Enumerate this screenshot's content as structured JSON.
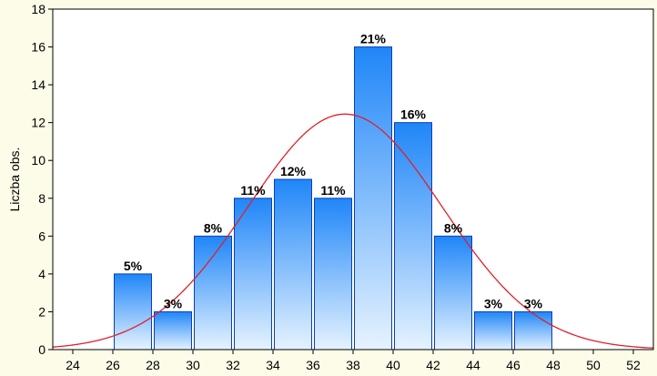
{
  "chart_data": {
    "type": "bar",
    "title": "",
    "xlabel": "",
    "ylabel": "Liczba obs.",
    "xlim": [
      23,
      53
    ],
    "ylim": [
      0,
      18
    ],
    "x_ticks": [
      24,
      26,
      28,
      30,
      32,
      34,
      36,
      38,
      40,
      42,
      44,
      46,
      48,
      50,
      52
    ],
    "y_ticks": [
      0,
      2,
      4,
      6,
      8,
      10,
      12,
      14,
      16,
      18
    ],
    "bin_width": 2,
    "grid": false,
    "series": [
      {
        "bins": [
          {
            "x_start": 26,
            "x_end": 28,
            "count": 4,
            "label": "5%"
          },
          {
            "x_start": 28,
            "x_end": 30,
            "count": 2,
            "label": "3%"
          },
          {
            "x_start": 30,
            "x_end": 32,
            "count": 6,
            "label": "8%"
          },
          {
            "x_start": 32,
            "x_end": 34,
            "count": 8,
            "label": "11%"
          },
          {
            "x_start": 34,
            "x_end": 36,
            "count": 9,
            "label": "12%"
          },
          {
            "x_start": 36,
            "x_end": 38,
            "count": 8,
            "label": "11%"
          },
          {
            "x_start": 38,
            "x_end": 40,
            "count": 16,
            "label": "21%"
          },
          {
            "x_start": 40,
            "x_end": 42,
            "count": 12,
            "label": "16%"
          },
          {
            "x_start": 42,
            "x_end": 44,
            "count": 6,
            "label": "8%"
          },
          {
            "x_start": 44,
            "x_end": 46,
            "count": 2,
            "label": "3%"
          },
          {
            "x_start": 46,
            "x_end": 48,
            "count": 2,
            "label": "3%"
          }
        ]
      }
    ],
    "fit_curve": {
      "type": "normal",
      "mean": 37.6,
      "sd": 4.85,
      "peak": 12.45,
      "color": "#e0202a"
    },
    "colors": {
      "plot_background": "#ffffff",
      "page_background": "#fcfce8",
      "bar_top": "#1f86f8",
      "bar_bottom": "#e6f3ff",
      "bar_border": "#0b3fb4"
    }
  }
}
